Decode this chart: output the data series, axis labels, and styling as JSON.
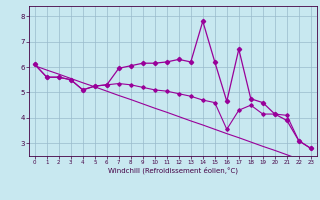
{
  "xlabel": "Windchill (Refroidissement éolien,°C)",
  "x": [
    0,
    1,
    2,
    3,
    4,
    5,
    6,
    7,
    8,
    9,
    10,
    11,
    12,
    13,
    14,
    15,
    16,
    17,
    18,
    19,
    20,
    21,
    22,
    23
  ],
  "line_jagged": [
    6.1,
    5.6,
    5.6,
    5.5,
    5.1,
    5.25,
    5.3,
    5.95,
    6.05,
    6.15,
    6.15,
    6.2,
    6.3,
    6.2,
    7.8,
    6.2,
    4.65,
    6.7,
    4.75,
    4.6,
    4.15,
    3.9,
    3.1,
    2.8
  ],
  "line_smooth": [
    6.1,
    5.6,
    5.6,
    5.5,
    5.1,
    5.25,
    5.3,
    5.35,
    5.3,
    5.2,
    5.1,
    5.05,
    4.95,
    4.85,
    4.7,
    4.6,
    3.55,
    4.3,
    4.5,
    4.15,
    4.15,
    4.1,
    3.1,
    2.8
  ],
  "line_trend": [
    6.05,
    5.88,
    5.72,
    5.55,
    5.38,
    5.22,
    5.05,
    4.88,
    4.72,
    4.55,
    4.38,
    4.22,
    4.05,
    3.88,
    3.72,
    3.55,
    3.38,
    3.22,
    3.05,
    2.88,
    2.72,
    2.55,
    2.38,
    2.22
  ],
  "line_color": "#990099",
  "bg_color": "#c8e8f0",
  "grid_color": "#99bbcc",
  "ylim": [
    2.5,
    8.4
  ],
  "yticks": [
    3,
    4,
    5,
    6,
    7,
    8
  ],
  "xticks": [
    0,
    1,
    2,
    3,
    4,
    5,
    6,
    7,
    8,
    9,
    10,
    11,
    12,
    13,
    14,
    15,
    16,
    17,
    18,
    19,
    20,
    21,
    22,
    23
  ],
  "xlabel_fontsize": 5,
  "tick_fontsize_x": 4,
  "tick_fontsize_y": 5
}
